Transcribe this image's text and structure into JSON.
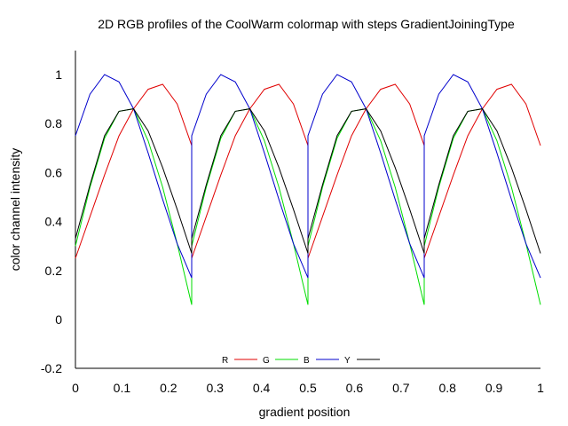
{
  "chart_data": {
    "type": "line",
    "title": "2D RGB profiles of the CoolWarm colormap with steps GradientJoiningType",
    "xlabel": "gradient position",
    "ylabel": "color channel intensity",
    "xlim": [
      0,
      1
    ],
    "ylim": [
      -0.2,
      1.1
    ],
    "x_ticks": [
      "0",
      "0.1",
      "0.2",
      "0.3",
      "0.4",
      "0.5",
      "0.6",
      "0.7",
      "0.8",
      "0.9",
      "1"
    ],
    "y_ticks": [
      "-0.2",
      "0",
      "0.2",
      "0.4",
      "0.6",
      "0.8",
      "1"
    ],
    "grid": false,
    "legend_position": "bottom-center",
    "x": [
      0.0,
      0.03125,
      0.0625,
      0.09375,
      0.125,
      0.15625,
      0.1875,
      0.21875,
      0.25,
      0.28125,
      0.3125,
      0.34375,
      0.375,
      0.40625,
      0.4375,
      0.46875,
      0.5,
      0.53125,
      0.5625,
      0.59375,
      0.625,
      0.65625,
      0.6875,
      0.71875,
      0.75,
      0.78125,
      0.8125,
      0.84375,
      0.875,
      0.90625,
      0.9375,
      0.96875,
      1.0
    ],
    "series": [
      {
        "name": "R",
        "color": "#e00000",
        "values": [
          0.25,
          0.42,
          0.59,
          0.75,
          0.86,
          0.94,
          0.96,
          0.88,
          0.71,
          0.42,
          0.59,
          0.75,
          0.86,
          0.94,
          0.96,
          0.88,
          0.71,
          0.42,
          0.59,
          0.75,
          0.86,
          0.94,
          0.96,
          0.88,
          0.71,
          0.42,
          0.59,
          0.75,
          0.86,
          0.94,
          0.96,
          0.88,
          0.71
        ]
      },
      {
        "name": "G",
        "color": "#00dd00",
        "values": [
          0.3,
          0.54,
          0.74,
          0.85,
          0.86,
          0.73,
          0.54,
          0.31,
          0.06,
          0.54,
          0.74,
          0.85,
          0.86,
          0.73,
          0.54,
          0.31,
          0.06,
          0.54,
          0.74,
          0.85,
          0.86,
          0.73,
          0.54,
          0.31,
          0.06,
          0.54,
          0.74,
          0.85,
          0.86,
          0.73,
          0.54,
          0.31,
          0.06
        ]
      },
      {
        "name": "B",
        "color": "#0000cc",
        "values": [
          0.75,
          0.92,
          1.0,
          0.97,
          0.86,
          0.68,
          0.49,
          0.31,
          0.17,
          0.92,
          1.0,
          0.97,
          0.86,
          0.68,
          0.49,
          0.31,
          0.17,
          0.92,
          1.0,
          0.97,
          0.86,
          0.68,
          0.49,
          0.31,
          0.17,
          0.92,
          1.0,
          0.97,
          0.86,
          0.68,
          0.49,
          0.31,
          0.17
        ]
      },
      {
        "name": "Y",
        "color": "#000000",
        "values": [
          0.33,
          0.55,
          0.75,
          0.85,
          0.86,
          0.77,
          0.62,
          0.45,
          0.27,
          0.55,
          0.75,
          0.85,
          0.86,
          0.77,
          0.62,
          0.45,
          0.27,
          0.55,
          0.75,
          0.85,
          0.86,
          0.77,
          0.62,
          0.45,
          0.27,
          0.55,
          0.75,
          0.85,
          0.86,
          0.77,
          0.62,
          0.45,
          0.27
        ]
      }
    ]
  }
}
